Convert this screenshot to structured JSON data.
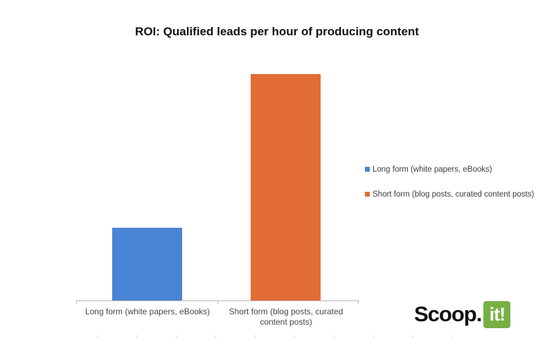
{
  "header": {
    "title": "ROI: Qualified leads per hour of producing content"
  },
  "chart_data": {
    "type": "bar",
    "title": "ROI: Qualified leads per hour of producing content",
    "categories": [
      "Long form (white papers, eBooks)",
      "Short form (blog posts, curated content posts)"
    ],
    "values": [
      0.32,
      1.0
    ],
    "value_note": "no y-axis ticks or data labels visible; values are bar heights relative to the tallest bar",
    "xlabel": "",
    "ylabel": "",
    "ylim": [
      0,
      1.08
    ],
    "grid": false,
    "legend_position": "right-middle",
    "series_colors": [
      "#4a84d4",
      "#e26c36"
    ]
  },
  "legend": {
    "items": [
      {
        "label": "Long form (white papers, eBooks)",
        "color": "#4a84d4"
      },
      {
        "label": "Short form (blog posts, curated content posts)",
        "color": "#e26c36"
      }
    ]
  },
  "axis": {
    "color": "#b7b7b7",
    "baseline_tick_positions": [
      110,
      314,
      517
    ]
  },
  "footer": {
    "logo_text": "Scoop.",
    "logo_badge": "it!",
    "logo_badge_color": "#76b043",
    "ruler_tick_count": 10
  }
}
